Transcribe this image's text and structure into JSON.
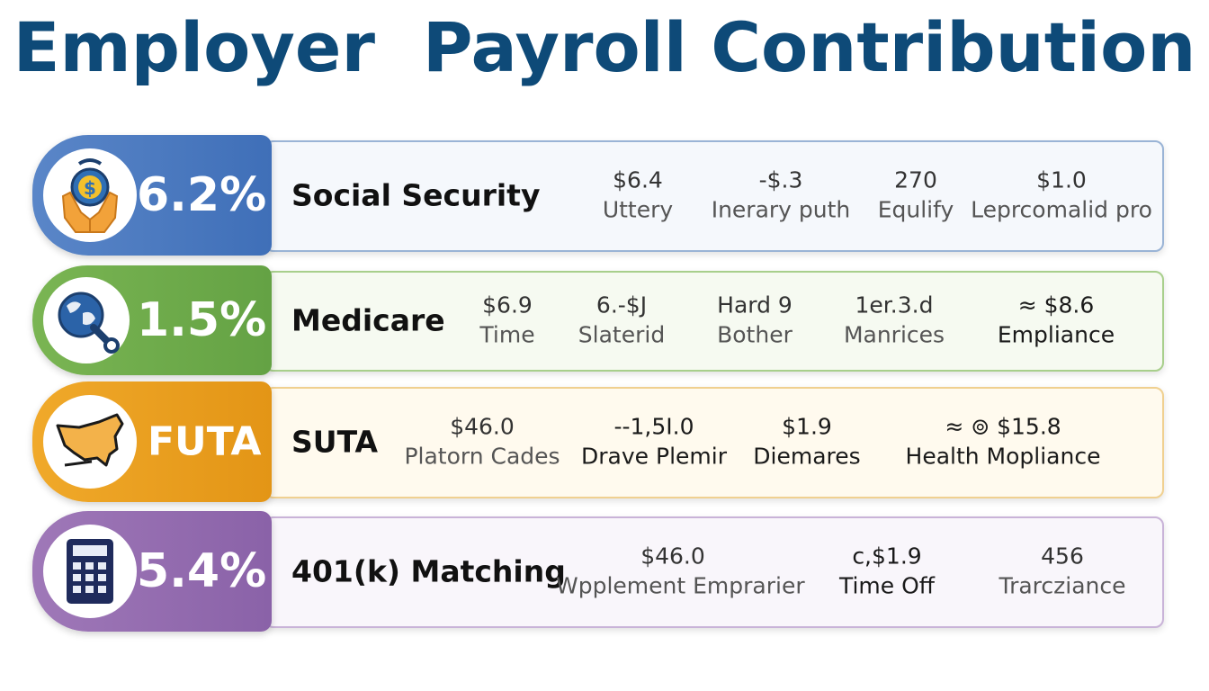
{
  "title": "Employer  Payroll Contribution",
  "colors": {
    "title": "#0e4a78",
    "social_security": "#4a78c0",
    "medicare": "#6daa4a",
    "futa": "#e89e1e",
    "matching": "#9470b0"
  },
  "rows": [
    {
      "icon": "hands-money-icon",
      "badge": "6.2%",
      "name": "Social Security",
      "cells": [
        {
          "value": "$6.4",
          "label": "Uttery"
        },
        {
          "value": "-$.3",
          "label": "Inerary puth"
        },
        {
          "value": "270",
          "label": "Equlify"
        },
        {
          "value": "$1.0",
          "label": "Leprcomalid pro"
        }
      ]
    },
    {
      "icon": "globe-wrench-icon",
      "badge": "1.5%",
      "name": "Medicare",
      "cells": [
        {
          "value": "$6.9",
          "label": "Time"
        },
        {
          "value": "6.-$J",
          "label": "Slaterid"
        },
        {
          "value": "Hard 9",
          "label": "Bother"
        },
        {
          "value": "1er.3.d",
          "label": "Manrices"
        },
        {
          "value": "≈ $8.6",
          "label": "Empliance"
        }
      ]
    },
    {
      "icon": "us-map-icon",
      "badge": "FUTA",
      "name": "SUTA",
      "cells": [
        {
          "value": "$46.0",
          "label": "Platorn Cades"
        },
        {
          "value": "--1,5I.0",
          "label": "Drave Plemir"
        },
        {
          "value": "$1.9",
          "label": "Diemares"
        },
        {
          "value": "≈ ⊚ $15.8",
          "label": "Health Mopliance"
        }
      ]
    },
    {
      "icon": "calculator-icon",
      "badge": "5.4%",
      "name": "401(k) Matching",
      "cells": [
        {
          "value": "$46.0",
          "label": "Wpplement Emprarier"
        },
        {
          "value": "c,$1.9",
          "label": "Time Off"
        },
        {
          "value": "456",
          "label": "Trarcziance"
        }
      ]
    }
  ]
}
